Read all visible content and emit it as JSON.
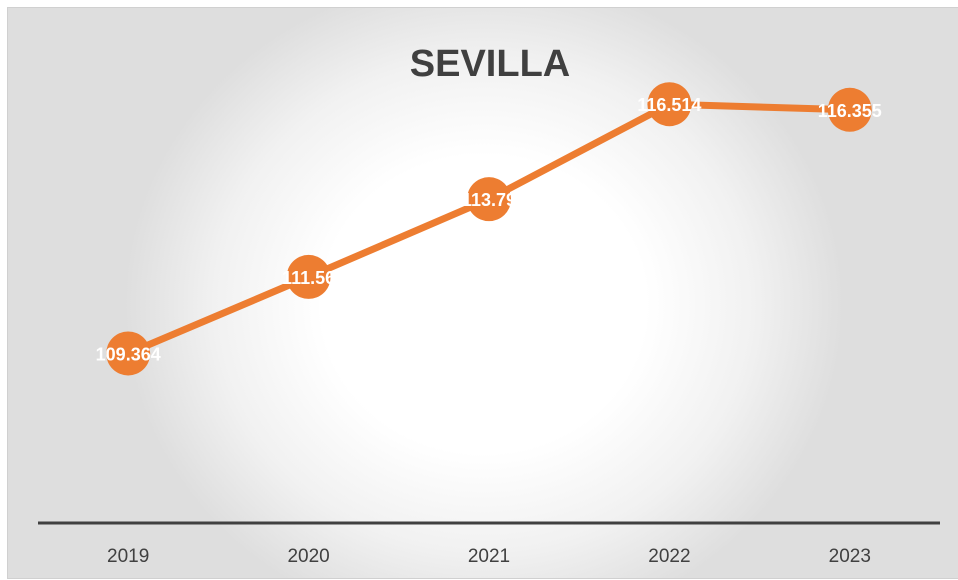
{
  "chart_data": {
    "type": "line",
    "title": "SEVILLA",
    "categories": [
      "2019",
      "2020",
      "2021",
      "2022",
      "2023"
    ],
    "series": [
      {
        "values": [
          109.364,
          111.56,
          113.79,
          116.514,
          116.355
        ],
        "labels": [
          "109.364",
          "111.56",
          "113.79",
          "116.514",
          "116.355"
        ]
      }
    ],
    "ylim": [
      104.5,
      118.5
    ],
    "grid": false,
    "legend": "none",
    "xlabel": "",
    "ylabel": ""
  },
  "colors": {
    "series": "#ed7d31",
    "axis": "#404040",
    "label": "#ffffff"
  }
}
